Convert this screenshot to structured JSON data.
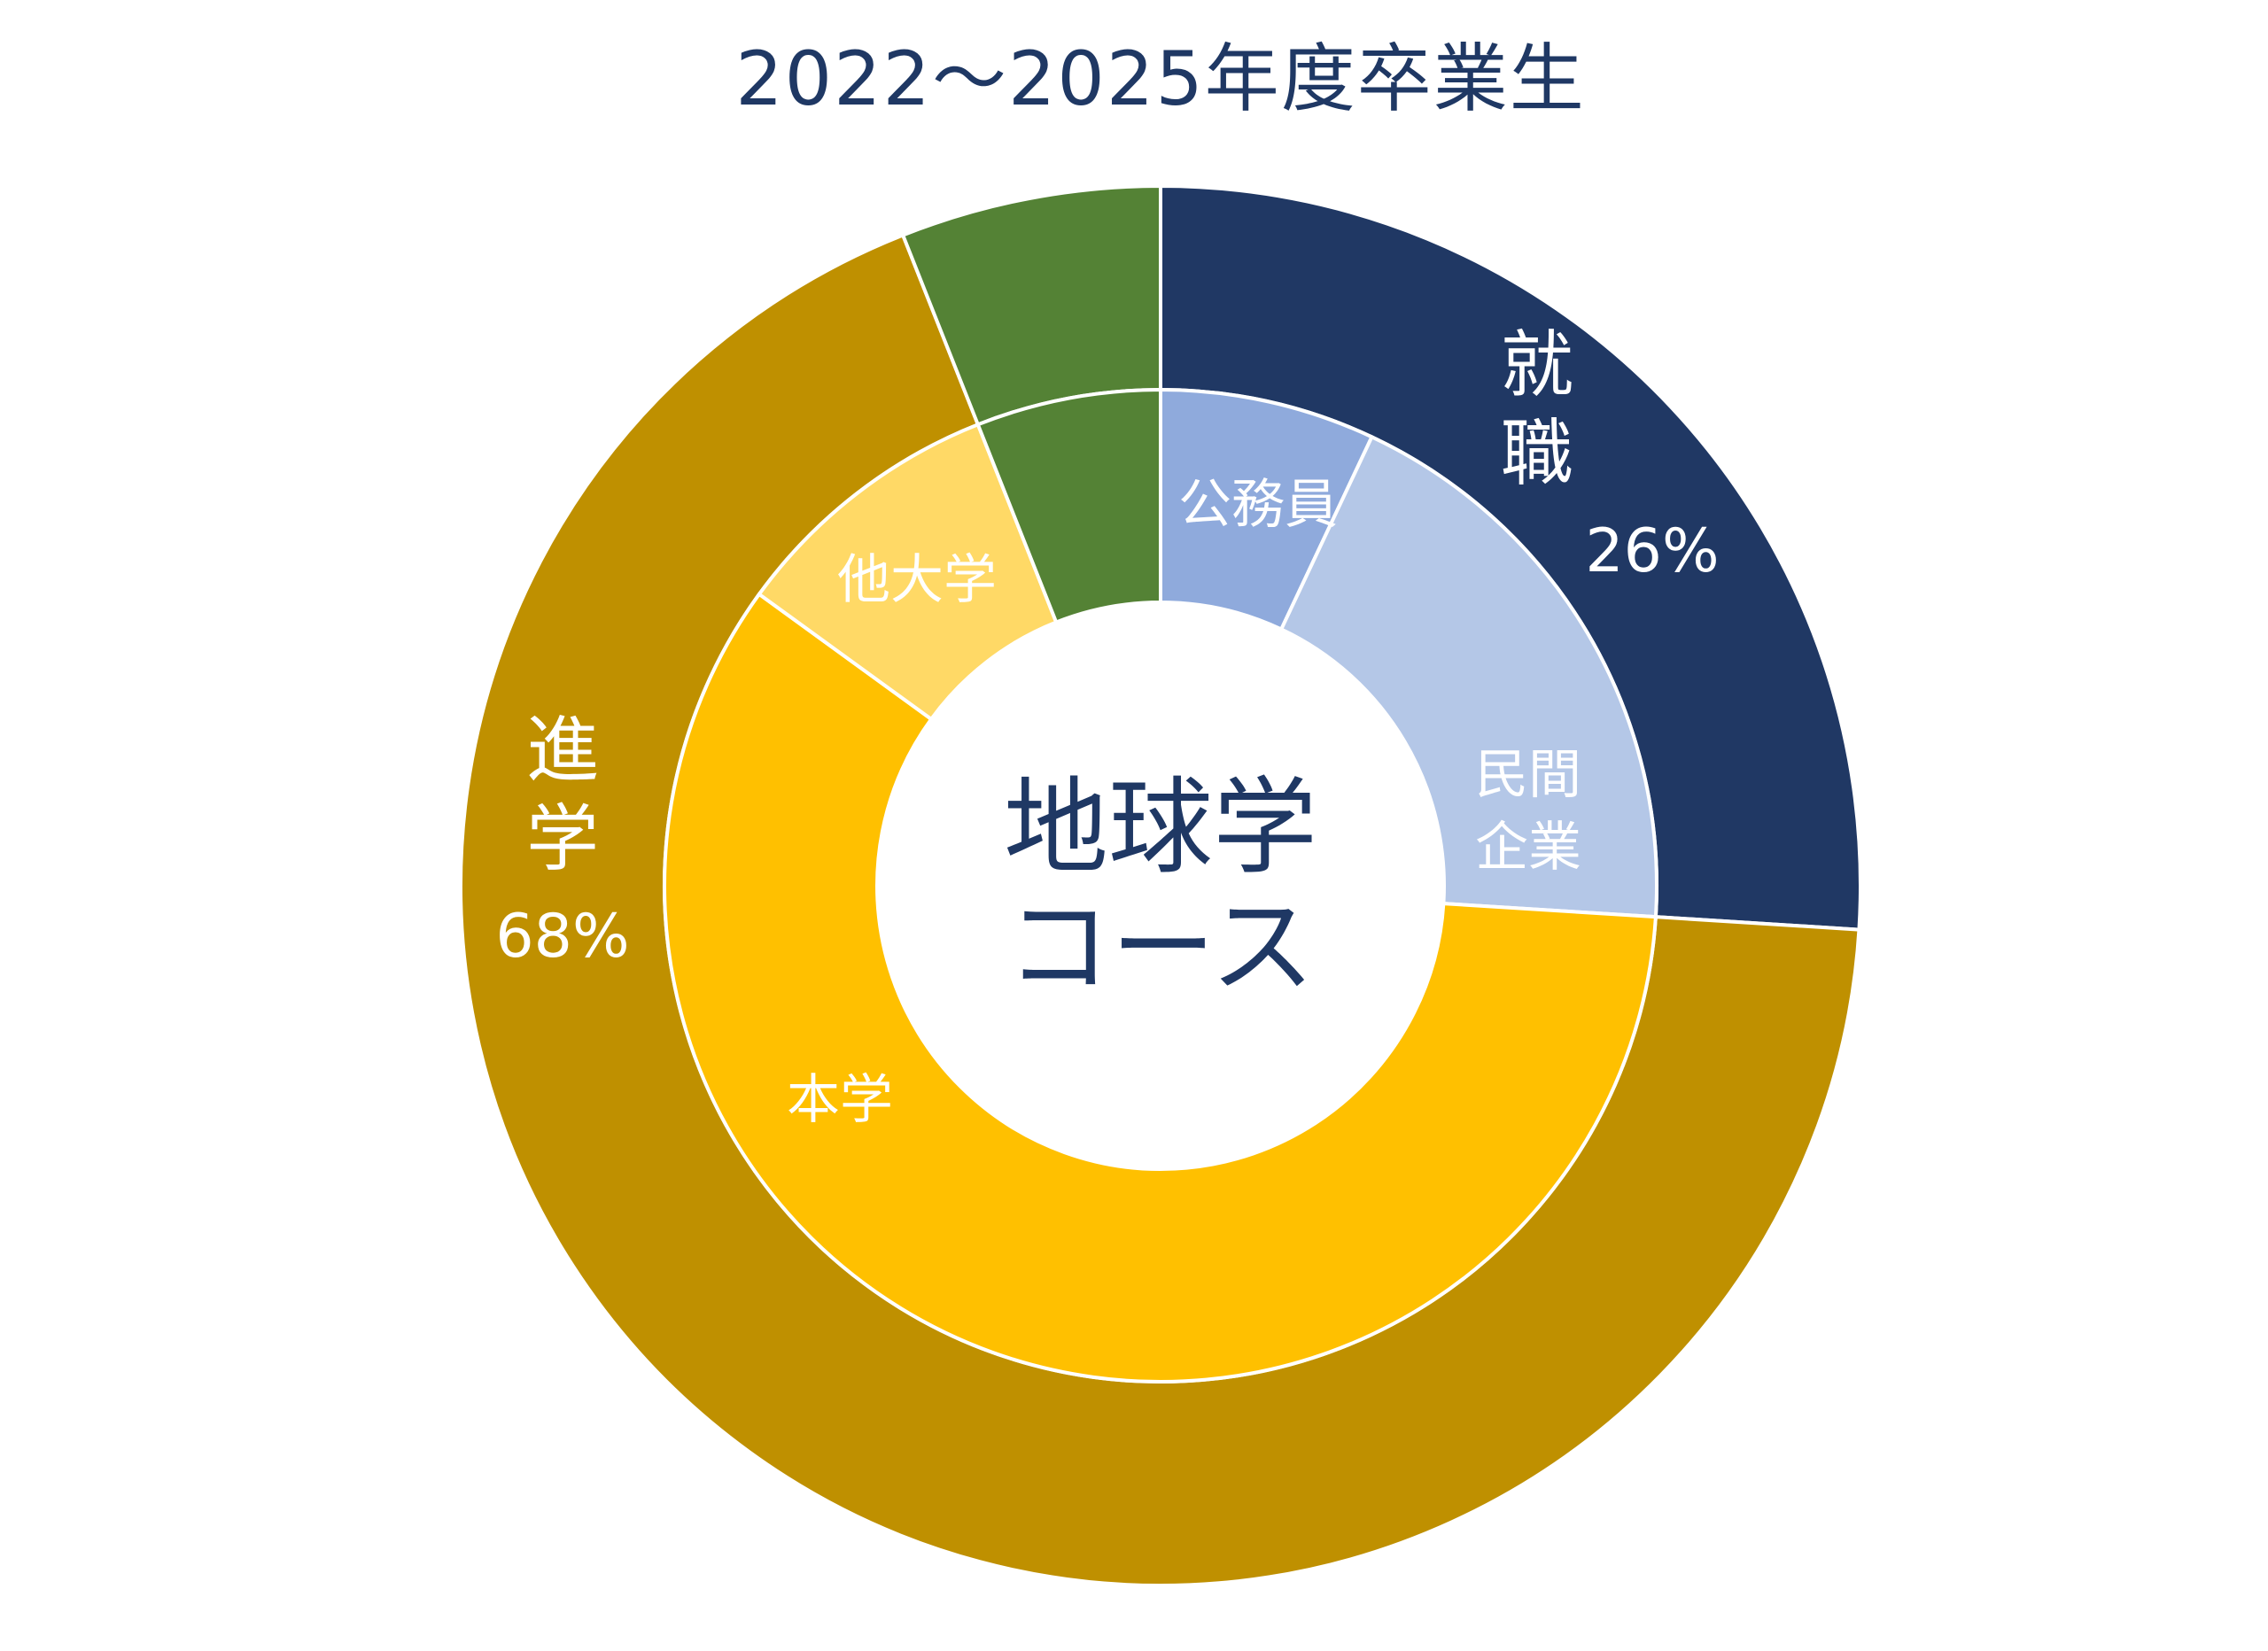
{
  "chart_data": {
    "type": "pie",
    "title": "2022〜2025年度卒業生",
    "center_label": [
      "地球学",
      "コース"
    ],
    "outer_ring": {
      "series": [
        {
          "name": "就職",
          "value": 26,
          "label_lines": [
            "就",
            "職"
          ],
          "percent_label": "26%",
          "color": "#203864"
        },
        {
          "name": "進学",
          "value": 68,
          "label_lines": [
            "進",
            "学"
          ],
          "percent_label": "68%",
          "color": "#bf9000"
        },
        {
          "name": "",
          "value": 6,
          "label_lines": [],
          "percent_label": "",
          "color": "#548235"
        }
      ]
    },
    "inner_ring": {
      "series": [
        {
          "name": "公務員",
          "value": 7,
          "label_lines": [
            "公務員"
          ],
          "color": "#8faadc"
        },
        {
          "name": "民間企業",
          "value": 19,
          "label_lines": [
            "民間",
            "企業"
          ],
          "color": "#b4c7e7"
        },
        {
          "name": "本学",
          "value": 59,
          "label_lines": [
            "本学"
          ],
          "color": "#ffc000"
        },
        {
          "name": "他大学",
          "value": 9,
          "label_lines": [
            "他大学"
          ],
          "color": "#ffd966"
        },
        {
          "name": "",
          "value": 6,
          "label_lines": [],
          "color": "#548235"
        }
      ]
    }
  }
}
